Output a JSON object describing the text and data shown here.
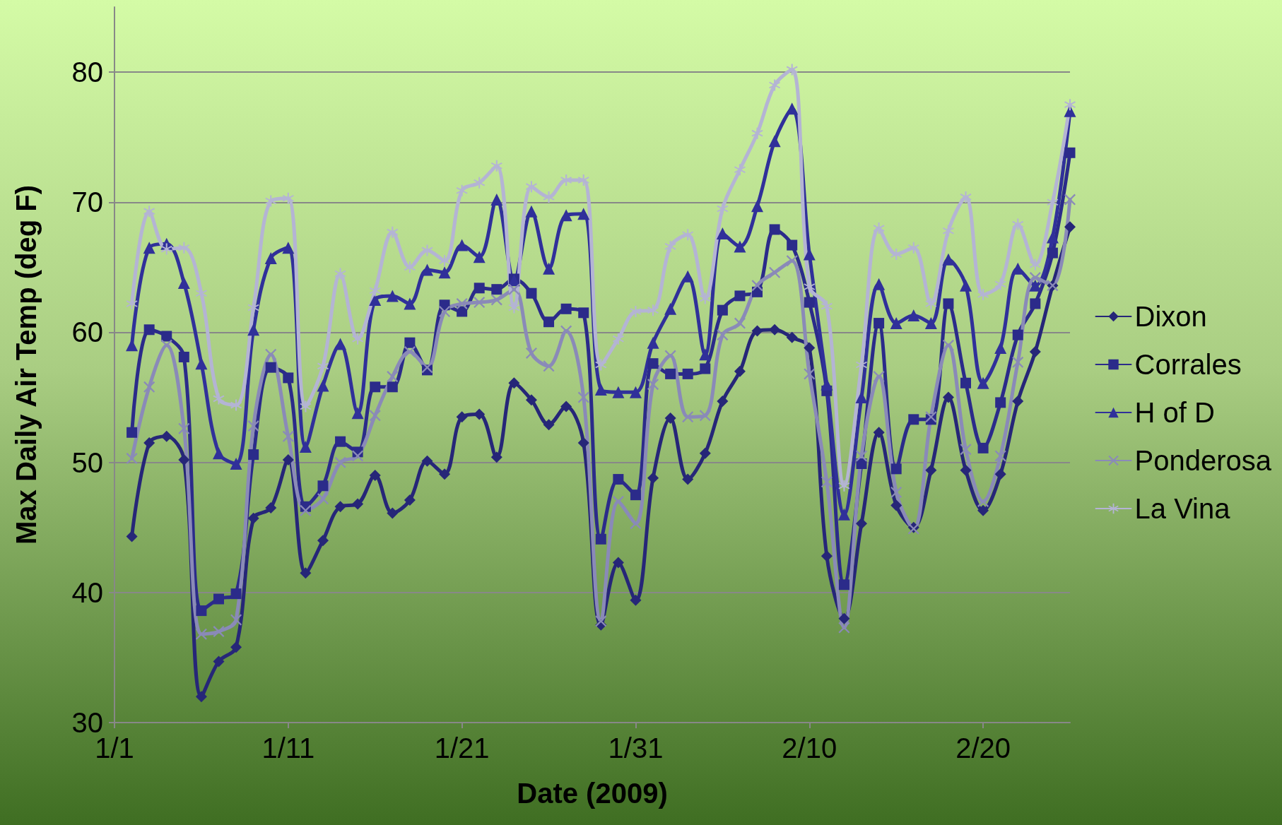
{
  "chart_data": {
    "type": "line",
    "xlabel": "Date (2009)",
    "ylabel": "Max Daily Air Temp (deg F)",
    "x": [
      "2009-01-02",
      "2009-01-03",
      "2009-01-04",
      "2009-01-05",
      "2009-01-06",
      "2009-01-07",
      "2009-01-08",
      "2009-01-09",
      "2009-01-10",
      "2009-01-11",
      "2009-01-12",
      "2009-01-13",
      "2009-01-14",
      "2009-01-15",
      "2009-01-16",
      "2009-01-17",
      "2009-01-18",
      "2009-01-19",
      "2009-01-20",
      "2009-01-21",
      "2009-01-22",
      "2009-01-23",
      "2009-01-24",
      "2009-01-25",
      "2009-01-26",
      "2009-01-27",
      "2009-01-28",
      "2009-01-29",
      "2009-01-30",
      "2009-01-31",
      "2009-02-01",
      "2009-02-02",
      "2009-02-03",
      "2009-02-04",
      "2009-02-05",
      "2009-02-06",
      "2009-02-07",
      "2009-02-08",
      "2009-02-09",
      "2009-02-10",
      "2009-02-11",
      "2009-02-12",
      "2009-02-13",
      "2009-02-14",
      "2009-02-15",
      "2009-02-16",
      "2009-02-17",
      "2009-02-18",
      "2009-02-19",
      "2009-02-20",
      "2009-02-21",
      "2009-02-22",
      "2009-02-23",
      "2009-02-24",
      "2009-02-25"
    ],
    "xlim": [
      "2009-01-01",
      "2009-02-25"
    ],
    "xticks": [
      {
        "value": "2009-01-01",
        "label": "1/1"
      },
      {
        "value": "2009-01-11",
        "label": "1/11"
      },
      {
        "value": "2009-01-21",
        "label": "1/21"
      },
      {
        "value": "2009-01-31",
        "label": "1/31"
      },
      {
        "value": "2009-02-10",
        "label": "2/10"
      },
      {
        "value": "2009-02-20",
        "label": "2/20"
      }
    ],
    "ylim": [
      30,
      85
    ],
    "yticks": [
      30,
      40,
      50,
      60,
      70,
      80
    ],
    "grid": "y",
    "legend": "right",
    "line_style": "solid",
    "series": [
      {
        "name": "Dixon",
        "color": "#262678",
        "marker": "diamond",
        "values": [
          44.3,
          51.5,
          52,
          50.2,
          32,
          34.7,
          35.8,
          45.7,
          46.5,
          50.2,
          41.5,
          44,
          46.6,
          46.8,
          49,
          46.1,
          47.1,
          50.1,
          49.1,
          53.5,
          53.7,
          50.4,
          56.1,
          54.8,
          52.9,
          54.3,
          51.5,
          37.5,
          42.3,
          39.4,
          48.8,
          53.4,
          48.7,
          50.7,
          54.7,
          57,
          60.1,
          60.2,
          59.6,
          58.8,
          42.8,
          38,
          45.3,
          52.3,
          46.7,
          45,
          49.4,
          55,
          49.4,
          46.3,
          49.1,
          54.7,
          58.5,
          63.6,
          68.1
        ]
      },
      {
        "name": "Corrales",
        "color": "#2b2b8a",
        "marker": "square",
        "values": [
          52.3,
          60.2,
          59.7,
          58.1,
          38.6,
          39.5,
          39.9,
          50.6,
          57.3,
          56.5,
          46.6,
          48.2,
          51.6,
          50.8,
          55.8,
          55.8,
          59.2,
          57.1,
          62.1,
          61.6,
          63.4,
          63.3,
          64.1,
          63,
          60.8,
          61.8,
          61.5,
          44.1,
          48.7,
          47.5,
          57.6,
          56.8,
          56.8,
          57.2,
          61.7,
          62.8,
          63.1,
          67.9,
          66.7,
          62.3,
          55.5,
          40.6,
          49.9,
          60.7,
          49.5,
          53.3,
          53.3,
          62.2,
          56.1,
          51.1,
          54.6,
          59.8,
          62.2,
          66.1,
          73.8
        ]
      },
      {
        "name": "H of D",
        "color": "#30309a",
        "marker": "triangle",
        "values": [
          59,
          66.5,
          66.8,
          63.8,
          57.6,
          50.7,
          49.9,
          60.2,
          65.7,
          66.5,
          51.2,
          55.9,
          59.1,
          53.8,
          62.5,
          62.8,
          62.2,
          64.8,
          64.6,
          66.7,
          65.8,
          70.2,
          64,
          69.3,
          64.9,
          69,
          69.1,
          55.6,
          55.4,
          55.4,
          59.2,
          61.8,
          64.3,
          58.3,
          67.6,
          66.6,
          69.7,
          74.7,
          77.2,
          66,
          56,
          46,
          55,
          63.7,
          60.7,
          61.3,
          60.7,
          65.6,
          63.6,
          56.1,
          58.8,
          64.9,
          63.6,
          67.3,
          77
        ]
      },
      {
        "name": "Ponderosa",
        "color": "#8a8ab8",
        "marker": "cross",
        "values": [
          50.3,
          55.8,
          59,
          52.6,
          36.8,
          37,
          37.9,
          52.8,
          58.3,
          52,
          46.3,
          47.2,
          50,
          50.5,
          53.6,
          56.6,
          58.5,
          57.3,
          61.6,
          62.2,
          62.3,
          62.5,
          63.3,
          58.4,
          57.4,
          60.1,
          55,
          37.8,
          47,
          45.3,
          56,
          58.2,
          53.5,
          53.6,
          59.8,
          60.7,
          63.6,
          64.6,
          65.5,
          56.8,
          48.5,
          37.3,
          50.5,
          56.6,
          47.7,
          44.9,
          53.5,
          59,
          51,
          47,
          50.5,
          57.7,
          64.2,
          63.6,
          70.2
        ]
      },
      {
        "name": "La Vina",
        "color": "#b4b4d4",
        "marker": "star",
        "values": [
          62.2,
          69.3,
          66.4,
          66.5,
          63,
          54.9,
          54.4,
          61.9,
          70.1,
          70.3,
          54.3,
          57.4,
          64.5,
          59.5,
          63.2,
          67.7,
          65,
          66.3,
          65.5,
          70.9,
          71.5,
          72.8,
          61.9,
          71.2,
          70.4,
          71.7,
          71.7,
          57.5,
          59.5,
          61.6,
          61.7,
          66.6,
          67.5,
          62.6,
          69.5,
          72.5,
          75.3,
          79,
          80.2,
          63.5,
          62,
          48.2,
          57.5,
          68,
          66,
          66.5,
          62.2,
          67.8,
          70.4,
          62.9,
          63.7,
          68.3,
          65.2,
          70,
          77.5
        ]
      }
    ]
  }
}
